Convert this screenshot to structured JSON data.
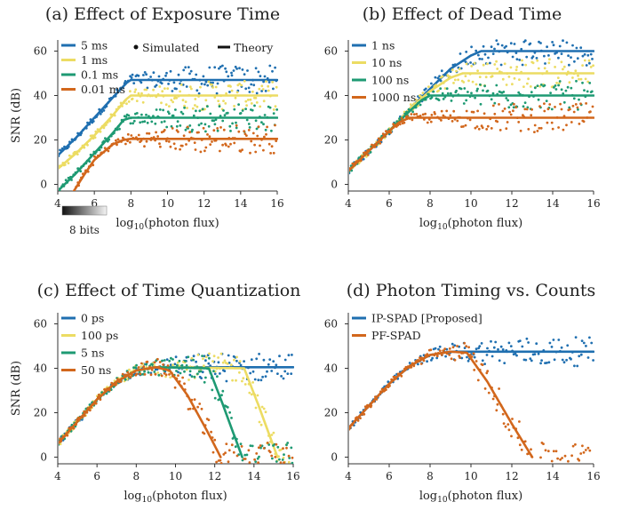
{
  "chart_data": [
    {
      "type": "line",
      "title": "(a) Effect of Exposure Time",
      "xlabel": "log10(photon flux)",
      "xlabel_base": "log",
      "xlabel_sub": "10",
      "xlabel_rest": "(photon flux)",
      "ylabel": "SNR (dB)",
      "xlim": [
        4,
        16
      ],
      "ylim": [
        0,
        60
      ],
      "xticks": [
        4,
        6,
        8,
        10,
        12,
        14,
        16
      ],
      "yticks": [
        0,
        20,
        40,
        60
      ],
      "grid": false,
      "legend_position": "top-left",
      "markers_legend": {
        "simulated": "Simulated",
        "theory": "Theory"
      },
      "colorbar_label": "8 bits",
      "series": [
        {
          "name": "5 ms",
          "color": "#1f6fb0",
          "x": [
            4,
            5,
            6,
            7,
            7.8,
            8,
            16
          ],
          "values": [
            13,
            21,
            30,
            39,
            46,
            47,
            47
          ]
        },
        {
          "name": "1 ms",
          "color": "#ecdc63",
          "x": [
            4,
            5,
            6,
            7,
            7.7,
            8,
            16
          ],
          "values": [
            7,
            14,
            22,
            31,
            38,
            40,
            40
          ]
        },
        {
          "name": "0.1 ms",
          "color": "#1e9a73",
          "x": [
            4,
            5,
            6,
            7,
            7.6,
            8,
            16
          ],
          "values": [
            -3,
            5,
            14,
            23,
            29,
            30,
            30
          ]
        },
        {
          "name": "0.01 ms",
          "color": "#d2671c",
          "x": [
            4.8,
            5.5,
            6,
            7,
            7.6,
            8,
            16
          ],
          "values": [
            -4,
            5,
            11,
            18,
            20,
            20.5,
            20.5
          ]
        }
      ]
    },
    {
      "type": "line",
      "title": "(b) Effect of Dead Time",
      "xlabel": "log10(photon flux)",
      "xlabel_base": "log",
      "xlabel_sub": "10",
      "xlabel_rest": "(photon flux)",
      "ylabel": "",
      "xlim": [
        4,
        16
      ],
      "ylim": [
        0,
        60
      ],
      "xticks": [
        4,
        6,
        8,
        10,
        12,
        14,
        16
      ],
      "yticks": [
        0,
        20,
        40,
        60
      ],
      "grid": false,
      "legend_position": "top-left",
      "series": [
        {
          "name": "1 ns",
          "color": "#1f6fb0",
          "x": [
            4,
            5,
            6,
            7,
            8,
            9,
            10,
            10.5,
            16
          ],
          "values": [
            6,
            15,
            24,
            34,
            43,
            52,
            58,
            60,
            60
          ]
        },
        {
          "name": "10 ns",
          "color": "#ecdc63",
          "x": [
            4,
            5,
            6,
            7,
            8,
            9,
            9.6,
            16
          ],
          "values": [
            6,
            15,
            24,
            34,
            42,
            48,
            50,
            50
          ]
        },
        {
          "name": "100 ns",
          "color": "#1e9a73",
          "x": [
            4,
            5,
            6,
            7,
            7.6,
            8,
            16
          ],
          "values": [
            6,
            15,
            24,
            33,
            38,
            40,
            40
          ]
        },
        {
          "name": "1000 ns",
          "color": "#d2671c",
          "x": [
            4,
            5,
            6,
            6.5,
            7,
            16
          ],
          "values": [
            6,
            15,
            24,
            28,
            30,
            30
          ]
        }
      ]
    },
    {
      "type": "line",
      "title": "(c) Effect of Time Quantization",
      "xlabel": "log10(photon flux)",
      "xlabel_base": "log",
      "xlabel_sub": "10",
      "xlabel_rest": "(photon flux)",
      "ylabel": "SNR (dB)",
      "xlim": [
        4,
        16
      ],
      "ylim": [
        0,
        60
      ],
      "xticks": [
        4,
        6,
        8,
        10,
        12,
        14,
        16
      ],
      "yticks": [
        0,
        20,
        40,
        60
      ],
      "grid": false,
      "legend_position": "top-left",
      "series": [
        {
          "name": "0 ps",
          "color": "#1f6fb0",
          "x": [
            4,
            5,
            6,
            7,
            8,
            9,
            16
          ],
          "values": [
            6,
            16,
            26,
            34,
            39,
            40.5,
            40.5
          ]
        },
        {
          "name": "100 ps",
          "color": "#ecdc63",
          "x": [
            4,
            5,
            6,
            7,
            8,
            9,
            13.5,
            14.2,
            15.2
          ],
          "values": [
            6,
            16,
            26,
            34,
            39,
            40.5,
            40,
            24,
            0
          ]
        },
        {
          "name": "5 ns",
          "color": "#1e9a73",
          "x": [
            4,
            5,
            6,
            7,
            8,
            9,
            11.7,
            12.4,
            13.4
          ],
          "values": [
            6,
            16,
            26,
            34,
            39,
            40.5,
            40,
            24,
            0
          ]
        },
        {
          "name": "50 ns",
          "color": "#d2671c",
          "x": [
            4,
            5,
            6,
            7,
            8,
            9,
            9.7,
            10.6,
            11.6,
            12.3
          ],
          "values": [
            6,
            16,
            26,
            34,
            39,
            40.5,
            39,
            28,
            12,
            0
          ]
        }
      ]
    },
    {
      "type": "line",
      "title": "(d) Photon Timing vs. Counts",
      "xlabel": "log10(photon flux)",
      "xlabel_base": "log",
      "xlabel_sub": "10",
      "xlabel_rest": "(photon flux)",
      "ylabel": "",
      "xlim": [
        4,
        16
      ],
      "ylim": [
        0,
        60
      ],
      "xticks": [
        4,
        6,
        8,
        10,
        12,
        14,
        16
      ],
      "yticks": [
        0,
        20,
        40,
        60
      ],
      "grid": false,
      "legend_position": "top-left",
      "series": [
        {
          "name": "IP-SPAD [Proposed]",
          "color": "#1f6fb0",
          "x": [
            4,
            5,
            6,
            7,
            8,
            9,
            16
          ],
          "values": [
            13,
            23,
            33,
            41,
            46,
            47.5,
            47.5
          ]
        },
        {
          "name": "PF-SPAD",
          "color": "#d2671c",
          "x": [
            4,
            5,
            6,
            7,
            8,
            9,
            9.8,
            10.8,
            12,
            13
          ],
          "values": [
            13,
            23,
            33,
            41,
            46,
            47.5,
            47,
            34,
            15,
            0
          ]
        }
      ]
    }
  ]
}
